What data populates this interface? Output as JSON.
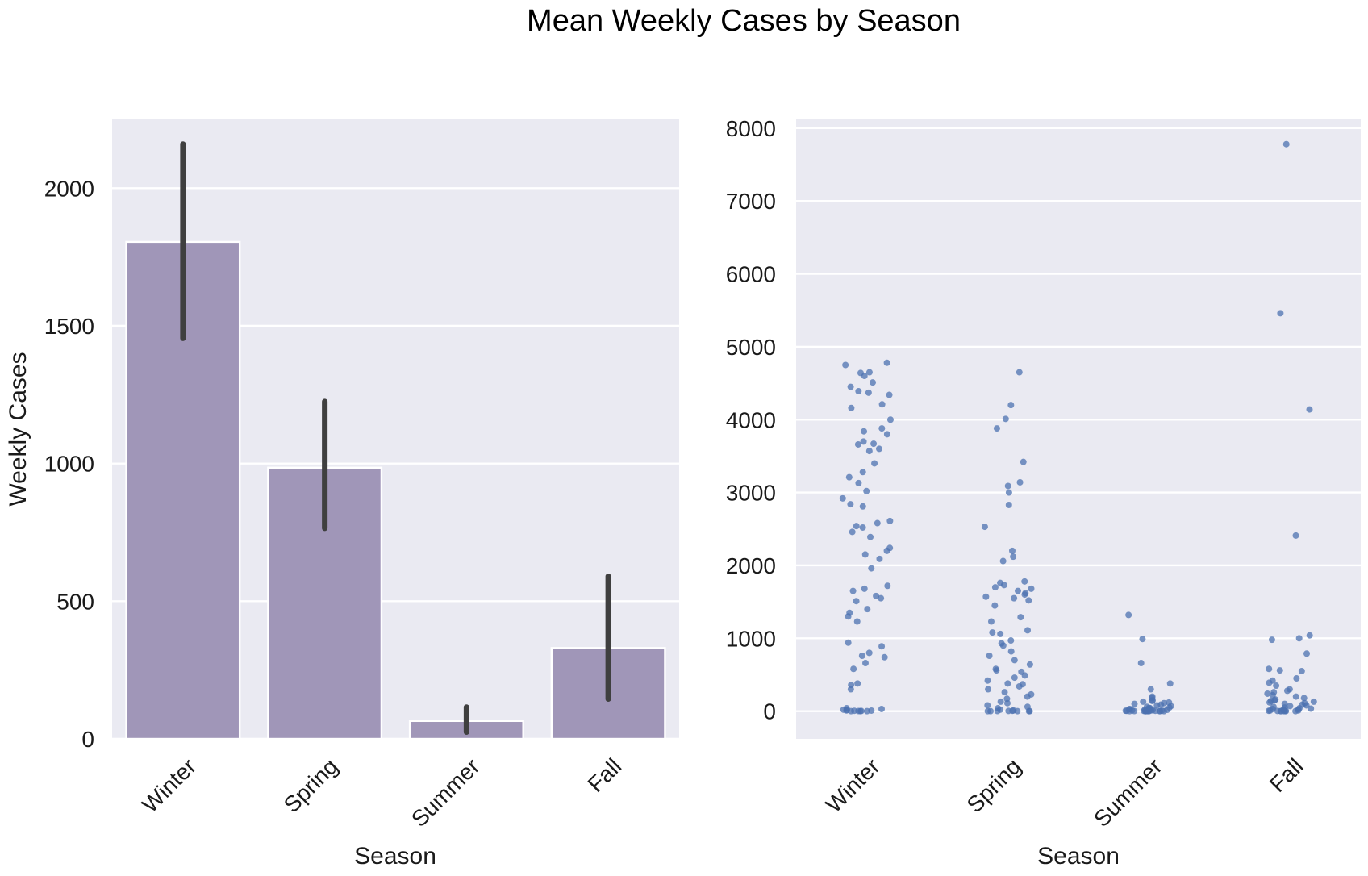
{
  "figure": {
    "title": "Mean Weekly Cases by Season"
  },
  "colors": {
    "background": "#eaeaf2",
    "bar_fill": "#a096b8",
    "errorbar": "#3f3f3f",
    "point": "#4c72b0",
    "grid": "#ffffff"
  },
  "chart_data": [
    {
      "type": "bar",
      "title": "",
      "xlabel": "Season",
      "ylabel": "Weekly Cases",
      "categories": [
        "Winter",
        "Spring",
        "Summer",
        "Fall"
      ],
      "values": [
        1805,
        985,
        65,
        330
      ],
      "ci_low": [
        1455,
        765,
        25,
        145
      ],
      "ci_high": [
        2160,
        1225,
        115,
        590
      ],
      "ylim": [
        0,
        2250
      ],
      "yticks": [
        0,
        500,
        1000,
        1500,
        2000
      ],
      "ytick_labels": [
        "0",
        "500",
        "1000",
        "1500",
        "2000"
      ],
      "grid": true
    },
    {
      "type": "scatter",
      "title": "",
      "xlabel": "Season",
      "ylabel": "",
      "categories": [
        "Winter",
        "Spring",
        "Summer",
        "Fall"
      ],
      "ylim": [
        -380,
        8120
      ],
      "yticks": [
        0,
        1000,
        2000,
        3000,
        4000,
        5000,
        6000,
        7000,
        8000
      ],
      "ytick_labels": [
        "0",
        "1000",
        "2000",
        "3000",
        "4000",
        "5000",
        "6000",
        "7000",
        "8000"
      ],
      "grid": true,
      "series": [
        {
          "category": "Winter",
          "values": [
            4780,
            4750,
            4650,
            4640,
            4600,
            4510,
            4450,
            4390,
            4370,
            4340,
            4210,
            4160,
            4000,
            3880,
            3840,
            3800,
            3700,
            3670,
            3660,
            3600,
            3570,
            3400,
            3280,
            3210,
            3130,
            3020,
            2920,
            2840,
            2810,
            2610,
            2580,
            2540,
            2520,
            2460,
            2390,
            2240,
            2200,
            2150,
            2090,
            1960,
            1720,
            1680,
            1650,
            1580,
            1550,
            1510,
            1400,
            1350,
            1300,
            1230,
            940,
            890,
            800,
            760,
            740,
            660,
            580,
            380,
            360,
            300,
            40,
            30,
            20,
            15,
            10,
            8,
            5,
            3,
            2,
            0,
            0,
            0
          ]
        },
        {
          "category": "Spring",
          "values": [
            4650,
            4200,
            4010,
            3880,
            3420,
            3140,
            3090,
            3000,
            2830,
            2530,
            2200,
            2120,
            2060,
            1780,
            1760,
            1730,
            1700,
            1680,
            1650,
            1620,
            1600,
            1570,
            1550,
            1520,
            1450,
            1290,
            1230,
            1110,
            1080,
            1060,
            970,
            930,
            900,
            820,
            760,
            700,
            640,
            580,
            560,
            540,
            490,
            460,
            420,
            380,
            370,
            340,
            300,
            260,
            230,
            200,
            170,
            130,
            110,
            80,
            60,
            40,
            20,
            10,
            5,
            3,
            2,
            0,
            0,
            0,
            0,
            0
          ]
        },
        {
          "category": "Summer",
          "values": [
            1320,
            990,
            660,
            380,
            300,
            200,
            180,
            150,
            140,
            130,
            120,
            110,
            100,
            90,
            80,
            70,
            60,
            50,
            45,
            40,
            35,
            30,
            25,
            20,
            18,
            15,
            12,
            10,
            8,
            6,
            5,
            4,
            3,
            2,
            1,
            0,
            0,
            0,
            0,
            0,
            0,
            0,
            0,
            0
          ]
        },
        {
          "category": "Fall",
          "values": [
            7780,
            5460,
            4140,
            2410,
            1040,
            1000,
            980,
            790,
            580,
            560,
            550,
            450,
            420,
            390,
            350,
            300,
            280,
            260,
            240,
            220,
            200,
            180,
            160,
            150,
            140,
            130,
            120,
            110,
            100,
            90,
            80,
            70,
            60,
            50,
            40,
            35,
            30,
            25,
            20,
            15,
            10,
            8,
            5,
            3,
            2,
            0,
            0,
            0,
            0,
            0
          ]
        }
      ]
    }
  ]
}
